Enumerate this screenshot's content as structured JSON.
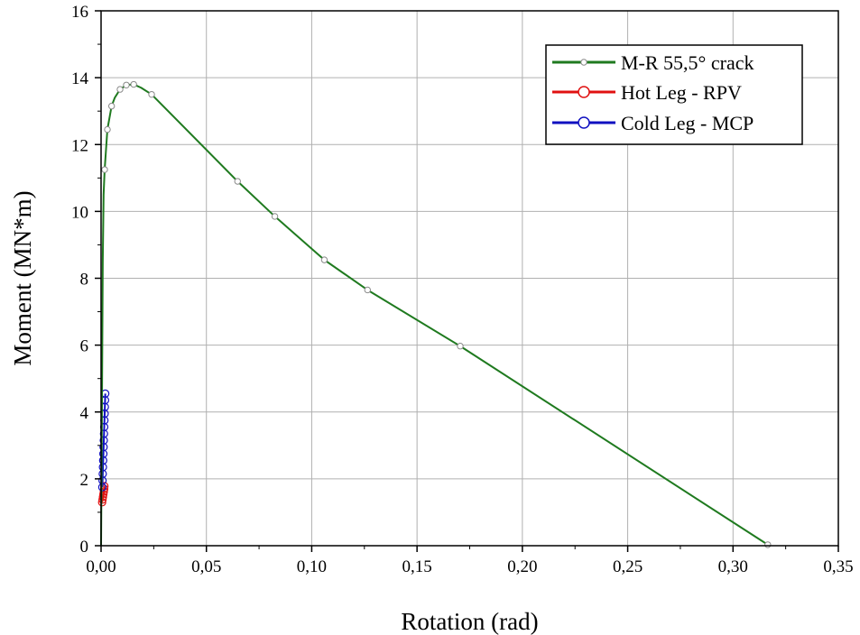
{
  "chart_data": {
    "type": "line",
    "xlabel": "Rotation (rad)",
    "ylabel": "Moment (MN*m)",
    "xlim": [
      0,
      0.35
    ],
    "ylim": [
      0,
      16
    ],
    "x_ticks": [
      0,
      0.05,
      0.1,
      0.15,
      0.2,
      0.25,
      0.3,
      0.35
    ],
    "x_tick_labels": [
      "0,00",
      "0,05",
      "0,10",
      "0,15",
      "0,20",
      "0,25",
      "0,30",
      "0,35"
    ],
    "y_ticks": [
      0,
      2,
      4,
      6,
      8,
      10,
      12,
      14,
      16
    ],
    "y_tick_labels": [
      "0",
      "2",
      "4",
      "6",
      "8",
      "10",
      "12",
      "14",
      "16"
    ],
    "grid": true,
    "legend_position": "top-right",
    "series": [
      {
        "name": "M-R 55,5° crack",
        "color": "#1f7a1f",
        "marker": "circle-small",
        "line_points": [
          [
            0.0,
            0.0
          ],
          [
            0.0004,
            4.0
          ],
          [
            0.0008,
            8.5
          ],
          [
            0.0012,
            10.5
          ],
          [
            0.0017,
            11.25
          ],
          [
            0.003,
            12.45
          ],
          [
            0.005,
            13.15
          ],
          [
            0.0065,
            13.4
          ],
          [
            0.009,
            13.65
          ],
          [
            0.012,
            13.78
          ],
          [
            0.0155,
            13.8
          ],
          [
            0.019,
            13.7
          ],
          [
            0.024,
            13.5
          ],
          [
            0.0648,
            10.9
          ],
          [
            0.0825,
            9.85
          ],
          [
            0.106,
            8.55
          ],
          [
            0.1265,
            7.65
          ],
          [
            0.1705,
            5.97
          ],
          [
            0.3165,
            0.03
          ]
        ],
        "marker_points": [
          [
            0.0017,
            11.25
          ],
          [
            0.003,
            12.45
          ],
          [
            0.005,
            13.15
          ],
          [
            0.009,
            13.65
          ],
          [
            0.012,
            13.78
          ],
          [
            0.0155,
            13.8
          ],
          [
            0.024,
            13.5
          ],
          [
            0.0648,
            10.9
          ],
          [
            0.0825,
            9.85
          ],
          [
            0.106,
            8.55
          ],
          [
            0.1265,
            7.65
          ],
          [
            0.1705,
            5.97
          ],
          [
            0.3165,
            0.03
          ]
        ]
      },
      {
        "name": "Hot Leg - RPV",
        "color": "#e01010",
        "marker": "circle",
        "points": [
          [
            0.0005,
            1.3
          ],
          [
            0.0007,
            1.38
          ],
          [
            0.0009,
            1.46
          ],
          [
            0.0011,
            1.54
          ],
          [
            0.0013,
            1.62
          ],
          [
            0.0015,
            1.7
          ],
          [
            0.0016,
            1.78
          ]
        ]
      },
      {
        "name": "Cold Leg - MCP",
        "color": "#1010c0",
        "marker": "circle",
        "points": [
          [
            0.0006,
            1.75
          ],
          [
            0.0007,
            1.95
          ],
          [
            0.0008,
            2.15
          ],
          [
            0.0009,
            2.35
          ],
          [
            0.001,
            2.55
          ],
          [
            0.0011,
            2.75
          ],
          [
            0.0012,
            2.95
          ],
          [
            0.0013,
            3.15
          ],
          [
            0.0014,
            3.35
          ],
          [
            0.0015,
            3.55
          ],
          [
            0.0016,
            3.75
          ],
          [
            0.0017,
            3.95
          ],
          [
            0.0018,
            4.15
          ],
          [
            0.0019,
            4.35
          ],
          [
            0.002,
            4.55
          ]
        ]
      }
    ]
  }
}
